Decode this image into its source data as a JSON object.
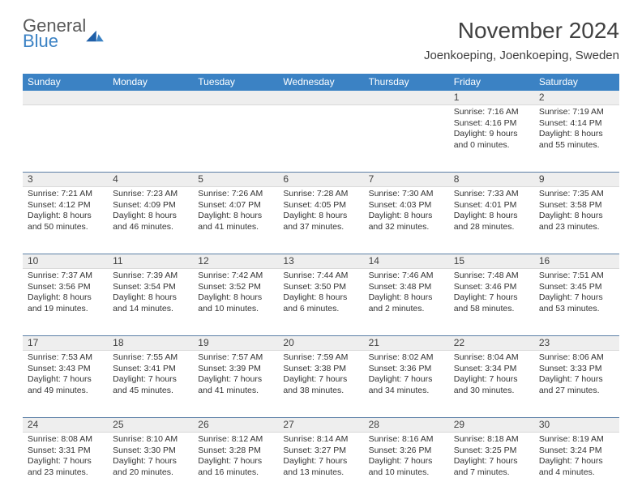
{
  "logo": {
    "textTop": "General",
    "textBottom": "Blue"
  },
  "header": {
    "monthTitle": "November 2024",
    "location": "Joenkoeping, Joenkoeping, Sweden"
  },
  "colors": {
    "headerBar": "#3b82c4",
    "headerText": "#ffffff",
    "dayNumBg": "#eeeeee",
    "dayNumBorderTop": "#5b7fa6",
    "bodyText": "#333333",
    "titleText": "#404040",
    "logoGray": "#595959",
    "logoBlue": "#3b82c4"
  },
  "weekdays": [
    "Sunday",
    "Monday",
    "Tuesday",
    "Wednesday",
    "Thursday",
    "Friday",
    "Saturday"
  ],
  "weeks": [
    [
      null,
      null,
      null,
      null,
      null,
      {
        "n": "1",
        "sunrise": "7:16 AM",
        "sunset": "4:16 PM",
        "dlH": "9",
        "dlM": "0"
      },
      {
        "n": "2",
        "sunrise": "7:19 AM",
        "sunset": "4:14 PM",
        "dlH": "8",
        "dlM": "55"
      }
    ],
    [
      {
        "n": "3",
        "sunrise": "7:21 AM",
        "sunset": "4:12 PM",
        "dlH": "8",
        "dlM": "50"
      },
      {
        "n": "4",
        "sunrise": "7:23 AM",
        "sunset": "4:09 PM",
        "dlH": "8",
        "dlM": "46"
      },
      {
        "n": "5",
        "sunrise": "7:26 AM",
        "sunset": "4:07 PM",
        "dlH": "8",
        "dlM": "41"
      },
      {
        "n": "6",
        "sunrise": "7:28 AM",
        "sunset": "4:05 PM",
        "dlH": "8",
        "dlM": "37"
      },
      {
        "n": "7",
        "sunrise": "7:30 AM",
        "sunset": "4:03 PM",
        "dlH": "8",
        "dlM": "32"
      },
      {
        "n": "8",
        "sunrise": "7:33 AM",
        "sunset": "4:01 PM",
        "dlH": "8",
        "dlM": "28"
      },
      {
        "n": "9",
        "sunrise": "7:35 AM",
        "sunset": "3:58 PM",
        "dlH": "8",
        "dlM": "23"
      }
    ],
    [
      {
        "n": "10",
        "sunrise": "7:37 AM",
        "sunset": "3:56 PM",
        "dlH": "8",
        "dlM": "19"
      },
      {
        "n": "11",
        "sunrise": "7:39 AM",
        "sunset": "3:54 PM",
        "dlH": "8",
        "dlM": "14"
      },
      {
        "n": "12",
        "sunrise": "7:42 AM",
        "sunset": "3:52 PM",
        "dlH": "8",
        "dlM": "10"
      },
      {
        "n": "13",
        "sunrise": "7:44 AM",
        "sunset": "3:50 PM",
        "dlH": "8",
        "dlM": "6"
      },
      {
        "n": "14",
        "sunrise": "7:46 AM",
        "sunset": "3:48 PM",
        "dlH": "8",
        "dlM": "2"
      },
      {
        "n": "15",
        "sunrise": "7:48 AM",
        "sunset": "3:46 PM",
        "dlH": "7",
        "dlM": "58"
      },
      {
        "n": "16",
        "sunrise": "7:51 AM",
        "sunset": "3:45 PM",
        "dlH": "7",
        "dlM": "53"
      }
    ],
    [
      {
        "n": "17",
        "sunrise": "7:53 AM",
        "sunset": "3:43 PM",
        "dlH": "7",
        "dlM": "49"
      },
      {
        "n": "18",
        "sunrise": "7:55 AM",
        "sunset": "3:41 PM",
        "dlH": "7",
        "dlM": "45"
      },
      {
        "n": "19",
        "sunrise": "7:57 AM",
        "sunset": "3:39 PM",
        "dlH": "7",
        "dlM": "41"
      },
      {
        "n": "20",
        "sunrise": "7:59 AM",
        "sunset": "3:38 PM",
        "dlH": "7",
        "dlM": "38"
      },
      {
        "n": "21",
        "sunrise": "8:02 AM",
        "sunset": "3:36 PM",
        "dlH": "7",
        "dlM": "34"
      },
      {
        "n": "22",
        "sunrise": "8:04 AM",
        "sunset": "3:34 PM",
        "dlH": "7",
        "dlM": "30"
      },
      {
        "n": "23",
        "sunrise": "8:06 AM",
        "sunset": "3:33 PM",
        "dlH": "7",
        "dlM": "27"
      }
    ],
    [
      {
        "n": "24",
        "sunrise": "8:08 AM",
        "sunset": "3:31 PM",
        "dlH": "7",
        "dlM": "23"
      },
      {
        "n": "25",
        "sunrise": "8:10 AM",
        "sunset": "3:30 PM",
        "dlH": "7",
        "dlM": "20"
      },
      {
        "n": "26",
        "sunrise": "8:12 AM",
        "sunset": "3:28 PM",
        "dlH": "7",
        "dlM": "16"
      },
      {
        "n": "27",
        "sunrise": "8:14 AM",
        "sunset": "3:27 PM",
        "dlH": "7",
        "dlM": "13"
      },
      {
        "n": "28",
        "sunrise": "8:16 AM",
        "sunset": "3:26 PM",
        "dlH": "7",
        "dlM": "10"
      },
      {
        "n": "29",
        "sunrise": "8:18 AM",
        "sunset": "3:25 PM",
        "dlH": "7",
        "dlM": "7"
      },
      {
        "n": "30",
        "sunrise": "8:19 AM",
        "sunset": "3:24 PM",
        "dlH": "7",
        "dlM": "4"
      }
    ]
  ],
  "labels": {
    "sunrisePrefix": "Sunrise: ",
    "sunsetPrefix": "Sunset: ",
    "daylightPrefix": "Daylight: ",
    "hoursWord": " hours",
    "andWord": "and ",
    "minutesWord": " minutes."
  }
}
